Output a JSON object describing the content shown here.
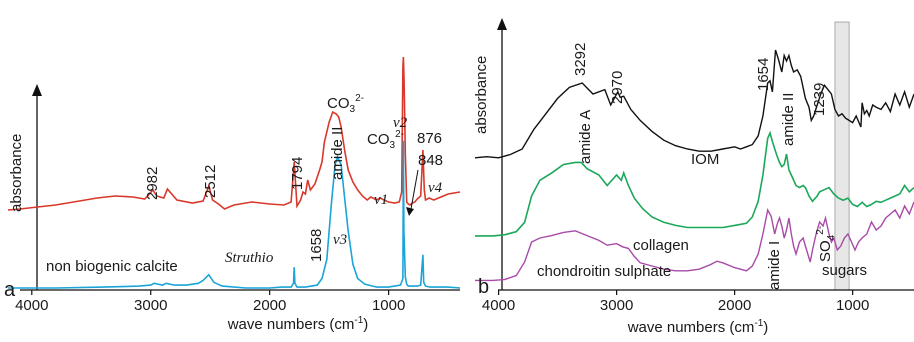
{
  "colors": {
    "struthio": "#d9382b",
    "calcite": "#1aa4d8",
    "iom": "#111111",
    "collagen": "#1aa85a",
    "chondroitin": "#a84aa8",
    "band": "#d7d7d7",
    "axis": "#111111"
  },
  "chart_data": [
    {
      "type": "line",
      "panel_letter": "a",
      "xlabel_main": "wave numbers (cm",
      "xlabel_sup": "-1",
      "xlabel_tail": ")",
      "ylabel": "absorbance",
      "xlim": [
        4200,
        400
      ],
      "x_reversed": true,
      "xticks": [
        4000,
        3000,
        2000,
        1000
      ],
      "xtick_labels": [
        "4000",
        "3000",
        "2000",
        "1000"
      ],
      "series": [
        {
          "name": "Struthio",
          "color_key": "struthio",
          "x": [
            4200,
            4100,
            3950,
            3800,
            3600,
            3450,
            3300,
            3150,
            3050,
            2982,
            2950,
            2890,
            2860,
            2780,
            2650,
            2560,
            2512,
            2480,
            2430,
            2380,
            2300,
            2150,
            2000,
            1880,
            1820,
            1794,
            1770,
            1740,
            1720,
            1700,
            1680,
            1658,
            1620,
            1580,
            1560,
            1540,
            1500,
            1470,
            1440,
            1420,
            1400,
            1370,
            1340,
            1300,
            1260,
            1220,
            1180,
            1150,
            1100,
            1070,
            1040,
            1000,
            950,
            910,
            890,
            880,
            876,
            870,
            860,
            848,
            835,
            820,
            800,
            780,
            760,
            730,
            712,
            700,
            690,
            660,
            620,
            560,
            500,
            400
          ],
          "y": [
            0.02,
            0.03,
            0.05,
            0.07,
            0.11,
            0.14,
            0.16,
            0.15,
            0.13,
            0.22,
            0.16,
            0.14,
            0.23,
            0.12,
            0.09,
            0.11,
            0.26,
            0.12,
            0.08,
            0.03,
            0.07,
            0.1,
            0.08,
            0.07,
            0.1,
            0.5,
            0.06,
            0.12,
            0.2,
            0.18,
            0.32,
            0.22,
            0.28,
            0.42,
            0.5,
            0.7,
            0.9,
            1.0,
            0.98,
            0.95,
            0.85,
            0.62,
            0.42,
            0.3,
            0.22,
            0.16,
            0.12,
            0.15,
            0.12,
            0.14,
            0.12,
            0.1,
            0.09,
            0.1,
            0.2,
            1.45,
            1.55,
            1.3,
            0.6,
            0.1,
            0.08,
            0.07,
            0.09,
            0.1,
            0.13,
            0.16,
            0.62,
            0.22,
            0.12,
            0.14,
            0.12,
            0.15,
            0.18,
            0.2
          ]
        },
        {
          "name": "non biogenic calcite",
          "color_key": "calcite",
          "x": [
            4200,
            3800,
            3400,
            3100,
            3000,
            2970,
            2900,
            2870,
            2800,
            2700,
            2600,
            2560,
            2512,
            2470,
            2400,
            2200,
            2000,
            1900,
            1820,
            1800,
            1794,
            1788,
            1770,
            1700,
            1600,
            1560,
            1520,
            1480,
            1450,
            1430,
            1400,
            1370,
            1340,
            1300,
            1260,
            1200,
            1100,
            1000,
            950,
            900,
            880,
            876,
            872,
            860,
            848,
            835,
            820,
            800,
            760,
            730,
            712,
            705,
            690,
            650,
            600,
            500,
            400
          ],
          "y": [
            0.0,
            0.0,
            0.01,
            0.02,
            0.03,
            0.05,
            0.03,
            0.05,
            0.03,
            0.03,
            0.05,
            0.08,
            0.14,
            0.06,
            0.02,
            0.0,
            0.0,
            0.01,
            0.01,
            0.05,
            0.22,
            0.05,
            0.01,
            0.01,
            0.03,
            0.1,
            0.3,
            0.9,
            1.3,
            1.38,
            1.3,
            0.95,
            0.6,
            0.25,
            0.1,
            0.04,
            0.01,
            0.01,
            0.02,
            0.03,
            0.1,
            1.55,
            0.6,
            0.12,
            0.04,
            0.02,
            0.02,
            0.02,
            0.02,
            0.03,
            0.35,
            0.06,
            0.02,
            0.01,
            0.01,
            0.01,
            0.0
          ]
        }
      ],
      "labels": {
        "wn_2982": "2982",
        "wn_2512": "2512",
        "wn_1794": "1794",
        "wn_1658": "1658",
        "amide_ii": "amide II",
        "co3_a": "CO",
        "co3_b": "CO",
        "co3_sub": "3",
        "co3_sup": "2-",
        "v1": "v1",
        "v2": "v2",
        "v3": "v3",
        "v4": "v4",
        "wn_876": "876",
        "wn_848": "848"
      }
    },
    {
      "type": "line",
      "panel_letter": "b",
      "xlabel_main": "wave numbers (cm",
      "xlabel_sup": "-1",
      "xlabel_tail": ")",
      "ylabel": "absorbance",
      "xlim": [
        4200,
        480
      ],
      "x_reversed": true,
      "xticks": [
        4000,
        3000,
        2000,
        1000
      ],
      "xtick_labels": [
        "4000",
        "3000",
        "2000",
        "1000"
      ],
      "highlight_band": [
        1150,
        1030
      ],
      "series": [
        {
          "name": "IOM",
          "color_key": "iom",
          "x": [
            4200,
            4100,
            4000,
            3900,
            3800,
            3700,
            3600,
            3500,
            3400,
            3292,
            3200,
            3100,
            3050,
            2990,
            2970,
            2940,
            2880,
            2800,
            2700,
            2600,
            2500,
            2400,
            2300,
            2200,
            2100,
            2000,
            1950,
            1900,
            1850,
            1800,
            1760,
            1720,
            1700,
            1680,
            1654,
            1630,
            1600,
            1580,
            1560,
            1540,
            1520,
            1500,
            1470,
            1440,
            1400,
            1370,
            1350,
            1330,
            1300,
            1270,
            1239,
            1210,
            1180,
            1150,
            1120,
            1090,
            1060,
            1030,
            1000,
            970,
            950,
            930,
            920,
            900,
            880,
            860,
            830,
            800,
            760,
            720,
            680,
            640,
            600,
            560,
            520,
            480
          ],
          "y": [
            0.02,
            0.03,
            0.02,
            0.05,
            0.1,
            0.28,
            0.42,
            0.56,
            0.66,
            0.7,
            0.6,
            0.64,
            0.5,
            0.62,
            0.57,
            0.58,
            0.46,
            0.36,
            0.26,
            0.18,
            0.13,
            0.1,
            0.08,
            0.08,
            0.1,
            0.12,
            0.1,
            0.12,
            0.14,
            0.22,
            0.4,
            0.7,
            0.72,
            0.62,
            1.0,
            0.92,
            0.8,
            0.95,
            0.9,
            0.95,
            0.86,
            0.8,
            0.82,
            0.76,
            0.56,
            0.48,
            0.36,
            0.4,
            0.5,
            0.6,
            0.68,
            0.64,
            0.6,
            0.46,
            0.4,
            0.42,
            0.38,
            0.36,
            0.34,
            0.4,
            0.35,
            0.3,
            0.52,
            0.42,
            0.45,
            0.4,
            0.5,
            0.48,
            0.46,
            0.52,
            0.44,
            0.6,
            0.5,
            0.62,
            0.48,
            0.6
          ]
        },
        {
          "name": "collagen",
          "color_key": "collagen",
          "x": [
            4200,
            4050,
            3950,
            3850,
            3780,
            3720,
            3650,
            3550,
            3450,
            3350,
            3300,
            3250,
            3150,
            3080,
            3000,
            2960,
            2940,
            2900,
            2850,
            2780,
            2700,
            2600,
            2500,
            2400,
            2300,
            2200,
            2100,
            2000,
            1900,
            1850,
            1800,
            1760,
            1720,
            1700,
            1680,
            1660,
            1640,
            1620,
            1600,
            1580,
            1560,
            1540,
            1520,
            1480,
            1450,
            1420,
            1400,
            1370,
            1340,
            1300,
            1280,
            1240,
            1200,
            1160,
            1120,
            1080,
            1040,
            1000,
            960,
            920,
            880,
            840,
            800,
            760,
            720,
            680,
            640,
            600,
            560,
            520,
            480
          ],
          "y": [
            0.02,
            0.02,
            0.03,
            0.06,
            0.15,
            0.4,
            0.55,
            0.62,
            0.7,
            0.72,
            0.72,
            0.66,
            0.6,
            0.5,
            0.6,
            0.55,
            0.62,
            0.5,
            0.38,
            0.28,
            0.2,
            0.15,
            0.12,
            0.1,
            0.1,
            0.1,
            0.1,
            0.12,
            0.14,
            0.2,
            0.35,
            0.6,
            0.95,
            1.0,
            0.92,
            0.85,
            0.78,
            0.72,
            0.68,
            0.7,
            0.8,
            0.65,
            0.6,
            0.5,
            0.48,
            0.5,
            0.48,
            0.4,
            0.35,
            0.4,
            0.44,
            0.46,
            0.48,
            0.42,
            0.38,
            0.36,
            0.38,
            0.32,
            0.3,
            0.34,
            0.3,
            0.32,
            0.35,
            0.34,
            0.36,
            0.38,
            0.4,
            0.42,
            0.5,
            0.44,
            0.48
          ]
        },
        {
          "name": "chondroitin sulphate",
          "color_key": "chondroitin",
          "x": [
            4200,
            4050,
            3950,
            3850,
            3780,
            3720,
            3650,
            3550,
            3450,
            3350,
            3250,
            3150,
            3080,
            3000,
            2950,
            2900,
            2850,
            2800,
            2700,
            2600,
            2500,
            2400,
            2300,
            2200,
            2150,
            2100,
            2000,
            1950,
            1900,
            1850,
            1800,
            1760,
            1720,
            1690,
            1660,
            1640,
            1620,
            1600,
            1580,
            1560,
            1540,
            1520,
            1500,
            1480,
            1450,
            1420,
            1400,
            1380,
            1360,
            1340,
            1310,
            1280,
            1250,
            1230,
            1200,
            1180,
            1160,
            1130,
            1100,
            1070,
            1040,
            1010,
            980,
            950,
            920,
            880,
            840,
            800,
            760,
            720,
            680,
            640,
            600,
            560,
            520,
            480
          ],
          "y": [
            0.02,
            0.02,
            0.03,
            0.08,
            0.25,
            0.5,
            0.55,
            0.58,
            0.62,
            0.64,
            0.58,
            0.52,
            0.46,
            0.48,
            0.44,
            0.42,
            0.32,
            0.24,
            0.2,
            0.16,
            0.14,
            0.14,
            0.16,
            0.22,
            0.26,
            0.24,
            0.18,
            0.16,
            0.14,
            0.2,
            0.35,
            0.6,
            0.9,
            0.82,
            0.6,
            0.72,
            0.8,
            0.7,
            0.55,
            0.65,
            0.8,
            0.6,
            0.45,
            0.35,
            0.5,
            0.55,
            0.45,
            0.35,
            0.25,
            0.4,
            0.6,
            0.75,
            0.7,
            0.8,
            0.6,
            0.5,
            0.55,
            0.4,
            0.45,
            0.55,
            0.6,
            0.5,
            0.4,
            0.5,
            0.55,
            0.6,
            0.75,
            0.65,
            0.7,
            0.8,
            0.85,
            0.9,
            0.8,
            0.95,
            0.85,
            1.0
          ]
        }
      ],
      "labels": {
        "wn_3292": "3292",
        "wn_2970": "2970",
        "wn_1654": "1654",
        "wn_1239": "1239",
        "amide_a": "amide A",
        "amide_ii": "amide II",
        "amide_i": "amide I",
        "so4_main": "SO",
        "so4_sub": "4",
        "so4_sup": "2-",
        "sugars": "sugars"
      }
    }
  ]
}
